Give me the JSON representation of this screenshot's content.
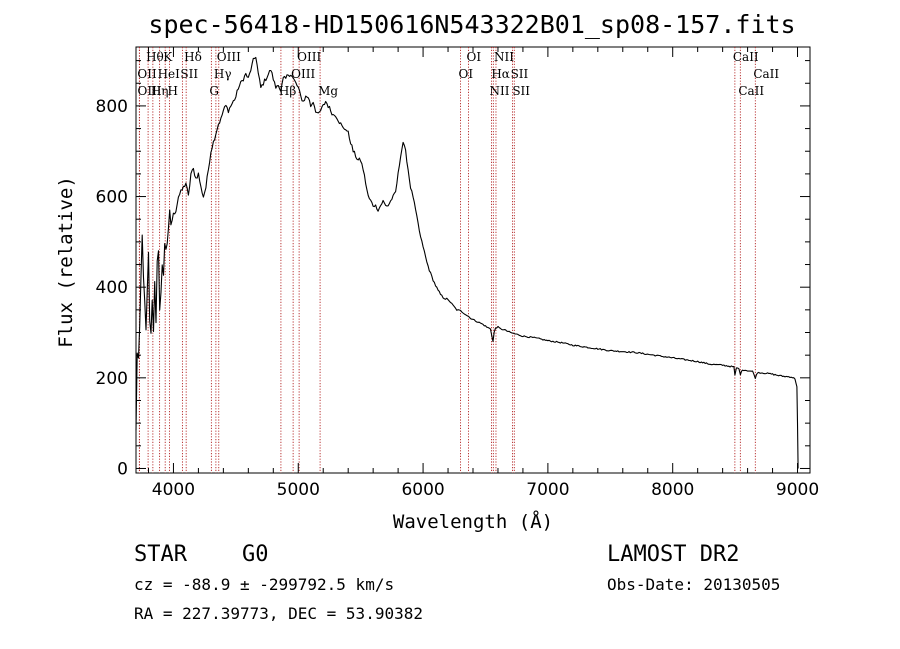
{
  "chart_data": {
    "type": "line",
    "title": "spec-56418-HD150616N543322B01_sp08-157.fits",
    "xlabel": "Wavelength (Å)",
    "ylabel": "Flux (relative)",
    "xlim": [
      3700,
      9100
    ],
    "ylim": [
      -10,
      930
    ],
    "xticks": [
      4000,
      5000,
      6000,
      7000,
      8000,
      9000
    ],
    "yticks": [
      0,
      200,
      400,
      600,
      800
    ],
    "grid": false,
    "legend": "none",
    "series": [
      {
        "line_color": "#000000",
        "x": [
          3700,
          3710,
          3720,
          3730,
          3740,
          3750,
          3760,
          3770,
          3780,
          3790,
          3800,
          3810,
          3820,
          3830,
          3840,
          3850,
          3860,
          3870,
          3880,
          3890,
          3900,
          3910,
          3920,
          3930,
          3940,
          3950,
          3960,
          3970,
          3980,
          3990,
          4000,
          4020,
          4040,
          4060,
          4080,
          4100,
          4120,
          4140,
          4160,
          4180,
          4200,
          4220,
          4240,
          4260,
          4280,
          4300,
          4320,
          4340,
          4360,
          4380,
          4400,
          4420,
          4440,
          4460,
          4480,
          4500,
          4520,
          4540,
          4560,
          4580,
          4600,
          4620,
          4640,
          4660,
          4680,
          4700,
          4720,
          4740,
          4760,
          4780,
          4800,
          4820,
          4840,
          4860,
          4880,
          4900,
          4920,
          4940,
          4960,
          4980,
          5000,
          5020,
          5040,
          5060,
          5080,
          5100,
          5120,
          5140,
          5160,
          5180,
          5200,
          5220,
          5240,
          5260,
          5280,
          5300,
          5320,
          5340,
          5360,
          5380,
          5400,
          5420,
          5440,
          5460,
          5480,
          5500,
          5520,
          5540,
          5560,
          5580,
          5600,
          5620,
          5640,
          5660,
          5680,
          5700,
          5720,
          5740,
          5760,
          5780,
          5800,
          5820,
          5840,
          5860,
          5880,
          5900,
          5920,
          5940,
          5960,
          5980,
          6000,
          6030,
          6060,
          6090,
          6120,
          6150,
          6180,
          6210,
          6240,
          6270,
          6300,
          6330,
          6360,
          6390,
          6420,
          6450,
          6480,
          6510,
          6540,
          6550,
          6560,
          6563,
          6570,
          6580,
          6600,
          6620,
          6650,
          6700,
          6750,
          6800,
          6900,
          7000,
          7100,
          7200,
          7300,
          7400,
          7500,
          7600,
          7700,
          7800,
          7900,
          8000,
          8100,
          8200,
          8300,
          8400,
          8490,
          8498,
          8510,
          8530,
          8542,
          8560,
          8600,
          8640,
          8662,
          8680,
          8750,
          8800,
          8850,
          8900,
          8950,
          8980,
          8995,
          9000,
          9005
        ],
        "y": [
          80,
          260,
          240,
          300,
          420,
          510,
          430,
          360,
          300,
          380,
          470,
          330,
          290,
          380,
          300,
          420,
          330,
          450,
          470,
          340,
          400,
          450,
          420,
          500,
          490,
          500,
          520,
          560,
          540,
          550,
          560,
          570,
          600,
          610,
          620,
          630,
          600,
          650,
          660,
          640,
          650,
          620,
          600,
          620,
          660,
          700,
          720,
          740,
          760,
          770,
          790,
          800,
          790,
          800,
          810,
          820,
          840,
          850,
          860,
          870,
          860,
          880,
          900,
          910,
          870,
          840,
          850,
          860,
          870,
          880,
          860,
          840,
          850,
          830,
          860,
          860,
          870,
          870,
          860,
          850,
          840,
          820,
          810,
          820,
          820,
          800,
          810,
          790,
          780,
          790,
          800,
          810,
          800,
          790,
          780,
          780,
          770,
          760,
          750,
          750,
          740,
          720,
          700,
          690,
          680,
          680,
          660,
          630,
          600,
          590,
          580,
          580,
          570,
          580,
          590,
          580,
          580,
          590,
          600,
          610,
          650,
          690,
          720,
          700,
          660,
          620,
          600,
          570,
          540,
          510,
          490,
          455,
          430,
          410,
          392,
          380,
          375,
          370,
          360,
          350,
          348,
          342,
          336,
          330,
          326,
          322,
          318,
          312,
          308,
          295,
          280,
          285,
          300,
          310,
          312,
          308,
          306,
          300,
          296,
          292,
          288,
          282,
          278,
          272,
          268,
          264,
          260,
          258,
          256,
          252,
          248,
          244,
          240,
          236,
          230,
          228,
          224,
          205,
          222,
          220,
          208,
          218,
          216,
          214,
          200,
          212,
          210,
          208,
          205,
          203,
          202,
          198,
          180,
          100,
          0
        ]
      }
    ]
  },
  "spectral_lines": [
    {
      "label": "Hθ",
      "wl": 3797,
      "row": 1
    },
    {
      "label": "OII",
      "wl": 3727,
      "row": 2
    },
    {
      "label": "OIII",
      "wl": 3728,
      "row": 3
    },
    {
      "label": "K",
      "wl": 3934,
      "row": 1
    },
    {
      "label": "HeI",
      "wl": 3889,
      "row": 2
    },
    {
      "label": "Hη",
      "wl": 3835,
      "row": 3
    },
    {
      "label": "H",
      "wl": 3968,
      "row": 3
    },
    {
      "label": "Hδ",
      "wl": 4102,
      "row": 1
    },
    {
      "label": "SII",
      "wl": 4072,
      "row": 2
    },
    {
      "label": "OIII",
      "wl": 4363,
      "row": 1
    },
    {
      "label": "Hγ",
      "wl": 4340,
      "row": 2
    },
    {
      "label": "G",
      "wl": 4304,
      "row": 3
    },
    {
      "label": "Hβ",
      "wl": 4861,
      "row": 3
    },
    {
      "label": "OIII",
      "wl": 5007,
      "row": 1
    },
    {
      "label": "OIII",
      "wl": 4959,
      "row": 2
    },
    {
      "label": "Mg",
      "wl": 5175,
      "row": 3
    },
    {
      "label": "OI",
      "wl": 6364,
      "row": 1
    },
    {
      "label": "OI",
      "wl": 6300,
      "row": 2
    },
    {
      "label": "NII",
      "wl": 6584,
      "row": 1
    },
    {
      "label": "Hα",
      "wl": 6563,
      "row": 2
    },
    {
      "label": "SII",
      "wl": 6717,
      "row": 2
    },
    {
      "label": "NII",
      "wl": 6548,
      "row": 3
    },
    {
      "label": "SII",
      "wl": 6731,
      "row": 3
    },
    {
      "label": "CaII",
      "wl": 8498,
      "row": 1
    },
    {
      "label": "CaII",
      "wl": 8662,
      "row": 2
    },
    {
      "label": "CaII",
      "wl": 8542,
      "row": 3
    }
  ],
  "line_marker_color": "#b22222",
  "info": {
    "object_type": "STAR",
    "subclass": "G0",
    "survey": "LAMOST DR2",
    "cz": "cz = -88.9 ± -299792.5 km/s",
    "obs_date": "Obs-Date: 20130505",
    "coords": "RA = 227.39773, DEC =  53.90382"
  }
}
